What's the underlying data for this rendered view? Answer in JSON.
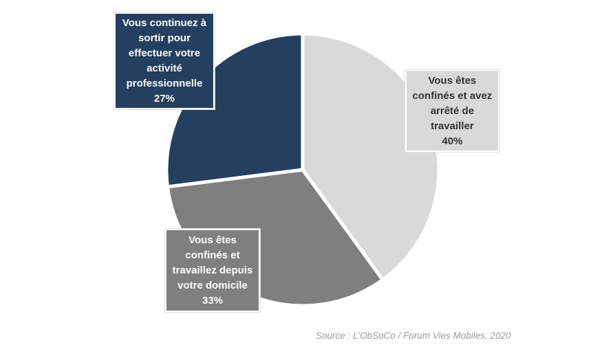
{
  "chart_data": {
    "type": "pie",
    "slices": [
      {
        "label": "Vous êtes confinés et avez arrêté de travailler",
        "value_label": "40%",
        "value": 40,
        "color": "#d9d9d9"
      },
      {
        "label": "Vous êtes confinés et travaillez depuis votre domicile",
        "value_label": "33%",
        "value": 33,
        "color": "#7f7f7f"
      },
      {
        "label": "Vous continuez à sortir pour effectuer votre activité professionnelle",
        "value_label": "27%",
        "value": 27,
        "color": "#243f60"
      }
    ],
    "source": "Source : L'ObSoCo / Forum Vies Mobiles, 2020"
  }
}
